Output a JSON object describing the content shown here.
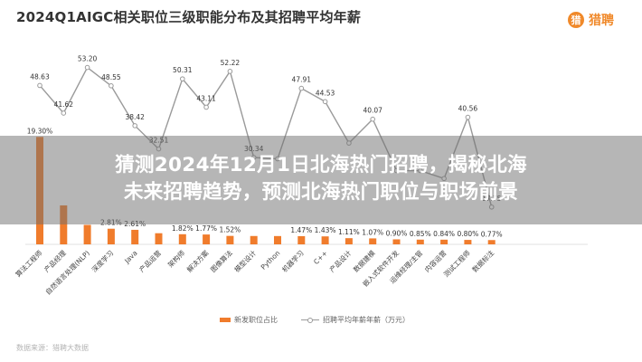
{
  "title": "2024Q1AIGC相关职位三级职能分布及其招聘平均年薪",
  "logo": {
    "text": "猎聘",
    "icon": "liepin-logo-icon"
  },
  "banner": {
    "line1": "猜测2024年12月1日北海热门招聘，揭秘北海",
    "line2": "未来招聘趋势，预测北海热门职位与职场前景"
  },
  "legend": {
    "bar": "新发职位占比",
    "line": "招聘平均年薪年薪（万元）"
  },
  "source": "数据来源：猎聘大数据",
  "colors": {
    "bar": "#f07c2c",
    "line": "#9a9a9a",
    "banner_overlay": "#6e6e6e"
  },
  "chart_data": {
    "type": "bar",
    "categories": [
      "算法工程师",
      "产品经理",
      "自然语言处理(NLP)",
      "深度学习",
      "Java",
      "产品运营",
      "架构师",
      "解决方案",
      "图像算法",
      "模型设计",
      "Python",
      "机器学习",
      "C++",
      "产品设计",
      "数据建模",
      "嵌入式软件开发",
      "运维经理/主管",
      "内容运营",
      "测试工程师",
      "数据标注"
    ],
    "series": [
      {
        "name": "新发职位占比",
        "type": "bar",
        "values": [
          19.3,
          7.0,
          3.5,
          2.81,
          2.61,
          2.0,
          1.82,
          1.77,
          1.52,
          1.5,
          1.49,
          1.47,
          1.43,
          1.11,
          1.07,
          0.9,
          0.85,
          0.84,
          0.8,
          0.77
        ],
        "labels": [
          "19.30%",
          "",
          "",
          "2.81%",
          "2.61%",
          "",
          "1.82%",
          "1.77%",
          "1.52%",
          "",
          "",
          "1.47%",
          "1.43%",
          "1.11%",
          "1.07%",
          "0.90%",
          "0.85%",
          "0.84%",
          "0.80%",
          "0.77%"
        ]
      },
      {
        "name": "招聘平均年薪年薪（万元）",
        "type": "line",
        "values": [
          48.63,
          41.62,
          53.2,
          48.55,
          38.42,
          32.51,
          50.31,
          43.11,
          52.22,
          30.34,
          30.0,
          47.91,
          44.53,
          34.0,
          40.07,
          27.0,
          27.0,
          25.0,
          40.56,
          17.75
        ],
        "labels": [
          "48.63",
          "41.62",
          "53.20",
          "48.55",
          "38.42",
          "32.51",
          "50.31",
          "43.11",
          "52.22",
          "30.34",
          "",
          "47.91",
          "44.53",
          "",
          "40.07",
          "",
          "",
          "",
          "40.56",
          "17.75"
        ]
      }
    ]
  }
}
